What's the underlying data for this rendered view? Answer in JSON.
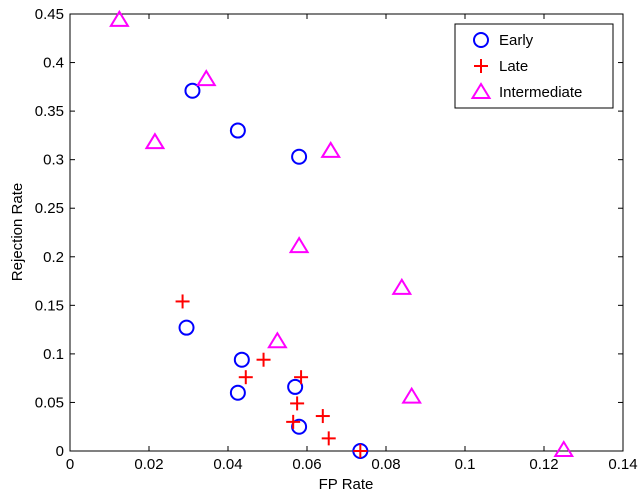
{
  "chart_data": {
    "type": "scatter",
    "title": "",
    "xlabel": "FP Rate",
    "ylabel": "Rejection Rate",
    "xlim": [
      0,
      0.14
    ],
    "ylim": [
      0,
      0.45
    ],
    "xticks": [
      0,
      0.02,
      0.04,
      0.06,
      0.08,
      0.1,
      0.12,
      0.14
    ],
    "xtick_labels": [
      "0",
      "0.02",
      "0.04",
      "0.06",
      "0.08",
      "0.1",
      "0.12",
      "0.14"
    ],
    "yticks": [
      0,
      0.05,
      0.1,
      0.15,
      0.2,
      0.25,
      0.3,
      0.35,
      0.4,
      0.45
    ],
    "ytick_labels": [
      "0",
      "0.05",
      "0.1",
      "0.15",
      "0.2",
      "0.25",
      "0.3",
      "0.35",
      "0.4",
      "0.45"
    ],
    "grid": false,
    "legend_position": "top-right",
    "series": [
      {
        "name": "Early",
        "marker": "circle",
        "color": "#0000ff",
        "points": [
          {
            "x": 0.031,
            "y": 0.371
          },
          {
            "x": 0.0425,
            "y": 0.33
          },
          {
            "x": 0.058,
            "y": 0.303
          },
          {
            "x": 0.0295,
            "y": 0.127
          },
          {
            "x": 0.0435,
            "y": 0.094
          },
          {
            "x": 0.0425,
            "y": 0.06
          },
          {
            "x": 0.057,
            "y": 0.066
          },
          {
            "x": 0.058,
            "y": 0.025
          },
          {
            "x": 0.0735,
            "y": 0.0
          }
        ]
      },
      {
        "name": "Late",
        "marker": "plus",
        "color": "#ff0000",
        "points": [
          {
            "x": 0.0285,
            "y": 0.154
          },
          {
            "x": 0.049,
            "y": 0.094
          },
          {
            "x": 0.0445,
            "y": 0.076
          },
          {
            "x": 0.0585,
            "y": 0.076
          },
          {
            "x": 0.0575,
            "y": 0.049
          },
          {
            "x": 0.0565,
            "y": 0.03
          },
          {
            "x": 0.064,
            "y": 0.036
          },
          {
            "x": 0.0655,
            "y": 0.013
          },
          {
            "x": 0.0735,
            "y": 0.0
          }
        ]
      },
      {
        "name": "Intermediate",
        "marker": "triangle",
        "color": "#ff00ff",
        "points": [
          {
            "x": 0.0125,
            "y": 0.444
          },
          {
            "x": 0.0345,
            "y": 0.383
          },
          {
            "x": 0.0215,
            "y": 0.318
          },
          {
            "x": 0.066,
            "y": 0.309
          },
          {
            "x": 0.058,
            "y": 0.211
          },
          {
            "x": 0.084,
            "y": 0.168
          },
          {
            "x": 0.0525,
            "y": 0.113
          },
          {
            "x": 0.0865,
            "y": 0.056
          },
          {
            "x": 0.125,
            "y": 0.001
          }
        ]
      }
    ]
  }
}
